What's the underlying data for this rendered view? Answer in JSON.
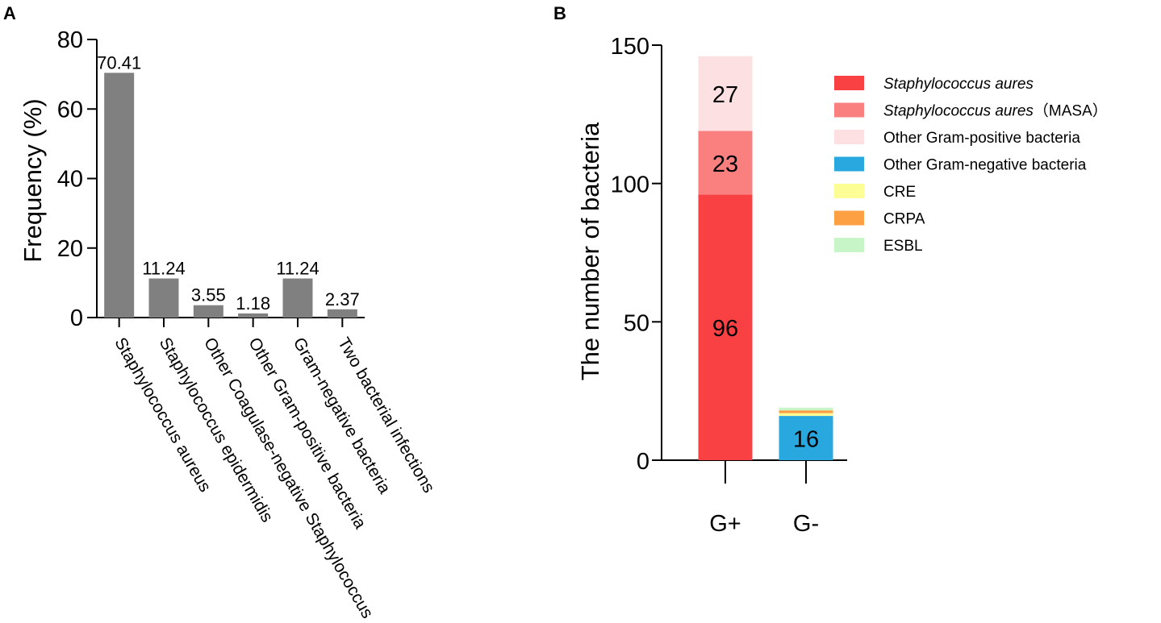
{
  "chart_data": [
    {
      "panel": "A",
      "type": "bar",
      "ylabel": "Frequency (%)",
      "xlabel": "",
      "ylim": [
        0,
        80
      ],
      "yticks": [
        0,
        20,
        40,
        60,
        80
      ],
      "categories": [
        "Staphylococcus aureus",
        "Staphylococcus epidermidis",
        "Other Coagulase-negative Staphylococcus",
        "Other Gram-positive bacteria",
        "Gram-negative bacteria",
        "Two bacterial infections"
      ],
      "values": [
        70.41,
        11.24,
        3.55,
        1.18,
        11.24,
        2.37
      ],
      "data_labels": [
        "70.41",
        "11.24",
        "3.55",
        "1.18",
        "11.24",
        "2.37"
      ],
      "bar_color": "#808080"
    },
    {
      "panel": "B",
      "type": "stacked-bar",
      "ylabel": "The number of bacteria",
      "xlabel": "",
      "ylim": [
        0,
        150
      ],
      "yticks": [
        0,
        50,
        100,
        150
      ],
      "categories": [
        "G+",
        "G-"
      ],
      "series": [
        {
          "name": "Staphylococcus aures",
          "name_suffix": "",
          "italic": true,
          "color": "#f94144",
          "values": [
            96,
            0
          ],
          "labels": [
            "96",
            ""
          ]
        },
        {
          "name": "Staphylococcus aures",
          "name_suffix": "（MASA）",
          "italic": true,
          "color": "#fa8080",
          "values": [
            23,
            0
          ],
          "labels": [
            "23",
            ""
          ]
        },
        {
          "name": "Other Gram-positive bacteria",
          "name_suffix": "",
          "italic": false,
          "color": "#fde0e2",
          "values": [
            27,
            0
          ],
          "labels": [
            "27",
            ""
          ]
        },
        {
          "name": "Other Gram-negative bacteria",
          "name_suffix": "",
          "italic": false,
          "color": "#29a8e0",
          "values": [
            0,
            16
          ],
          "labels": [
            "",
            "16"
          ]
        },
        {
          "name": "CRE",
          "name_suffix": "",
          "italic": false,
          "color": "#fdfd96",
          "values": [
            0,
            1
          ],
          "labels": [
            "",
            ""
          ]
        },
        {
          "name": "CRPA",
          "name_suffix": "",
          "italic": false,
          "color": "#fca043",
          "values": [
            0,
            1
          ],
          "labels": [
            "",
            ""
          ]
        },
        {
          "name": "ESBL",
          "name_suffix": "",
          "italic": false,
          "color": "#c8f5c8",
          "values": [
            0,
            1
          ],
          "labels": [
            "",
            ""
          ]
        }
      ],
      "legend_position": "right"
    }
  ]
}
